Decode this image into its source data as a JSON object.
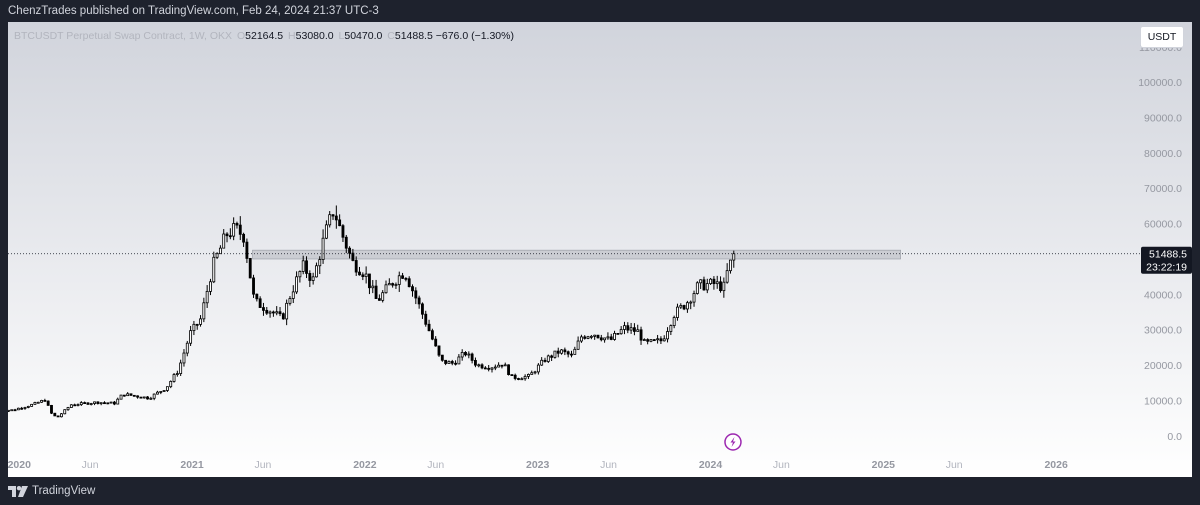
{
  "header": {
    "published": "ChenzTrades published on TradingView.com, Feb 24, 2024 21:37 UTC-3"
  },
  "legend": {
    "symbol": "BTCUSDT Perpetual Swap Contract, 1W, OKX",
    "o_label": "O",
    "open": "52164.5",
    "h_label": "H",
    "high": "53080.0",
    "l_label": "L",
    "low": "50470.0",
    "c_label": "C",
    "close": "51488.5",
    "change": "−676.0 (−1.30%)"
  },
  "currency_button": "USDT",
  "price_label": {
    "price": "51488.5",
    "countdown": "23:22:19"
  },
  "brand": {
    "name": "TradingView",
    "logo_icon": "tradingview-logo-icon"
  },
  "colors": {
    "up": "#ffffff",
    "down": "#000000",
    "wick": "#000000",
    "accent": "#9c27b0",
    "price_tag": "#131722"
  },
  "chart_data": {
    "type": "candlestick",
    "timeframe": "1W",
    "exchange": "OKX",
    "last_price": 51488.5,
    "y_ticks": [
      0,
      10000,
      20000,
      30000,
      40000,
      50000,
      60000,
      70000,
      80000,
      90000,
      100000,
      110000
    ],
    "y_tick_labels": [
      "0.0",
      "10000.0",
      "20000.0",
      "30000.0",
      "40000.0",
      "50000.0",
      "60000.0",
      "70000.0",
      "80000.0",
      "90000.0",
      "100000.0",
      "110000.0"
    ],
    "ylim": [
      -4000,
      117000
    ],
    "x_labels": [
      {
        "t": 2020.0,
        "label": "2020",
        "bold": true
      },
      {
        "t": 2020.41,
        "label": "Jun",
        "bold": false
      },
      {
        "t": 2021.0,
        "label": "2021",
        "bold": true
      },
      {
        "t": 2021.41,
        "label": "Jun",
        "bold": false
      },
      {
        "t": 2022.0,
        "label": "2022",
        "bold": true
      },
      {
        "t": 2022.41,
        "label": "Jun",
        "bold": false
      },
      {
        "t": 2023.0,
        "label": "2023",
        "bold": true
      },
      {
        "t": 2023.41,
        "label": "Jun",
        "bold": false
      },
      {
        "t": 2024.0,
        "label": "2024",
        "bold": true
      },
      {
        "t": 2024.41,
        "label": "Jun",
        "bold": false
      },
      {
        "t": 2025.0,
        "label": "2025",
        "bold": true
      },
      {
        "t": 2025.41,
        "label": "Jun",
        "bold": false
      },
      {
        "t": 2026.0,
        "label": "2026",
        "bold": true
      }
    ],
    "xlim": [
      2019.935,
      2026.3
    ],
    "resistance_zone": {
      "y_low": 50000,
      "y_high": 52500,
      "t_start": 2021.35,
      "t_end": 2025.1
    },
    "event_marker": {
      "t": 2024.13,
      "icon": "lightning-icon"
    },
    "series_keypoints": [
      [
        2019.88,
        7200
      ],
      [
        2019.96,
        7300
      ],
      [
        2020.08,
        8900
      ],
      [
        2020.15,
        10200
      ],
      [
        2020.19,
        6000
      ],
      [
        2020.22,
        5200
      ],
      [
        2020.3,
        8800
      ],
      [
        2020.45,
        9500
      ],
      [
        2020.55,
        9200
      ],
      [
        2020.6,
        11800
      ],
      [
        2020.75,
        10700
      ],
      [
        2020.85,
        13600
      ],
      [
        2020.92,
        18500
      ],
      [
        2020.99,
        29000
      ],
      [
        2021.05,
        33000
      ],
      [
        2021.12,
        48000
      ],
      [
        2021.2,
        57000
      ],
      [
        2021.25,
        58500
      ],
      [
        2021.3,
        56500
      ],
      [
        2021.36,
        38000
      ],
      [
        2021.45,
        35500
      ],
      [
        2021.52,
        33000
      ],
      [
        2021.57,
        40000
      ],
      [
        2021.64,
        48000
      ],
      [
        2021.7,
        44000
      ],
      [
        2021.77,
        57000
      ],
      [
        2021.82,
        64000
      ],
      [
        2021.86,
        58000
      ],
      [
        2021.93,
        49000
      ],
      [
        2022.0,
        46000
      ],
      [
        2022.07,
        38000
      ],
      [
        2022.15,
        43000
      ],
      [
        2022.23,
        46500
      ],
      [
        2022.3,
        38500
      ],
      [
        2022.37,
        30000
      ],
      [
        2022.44,
        21000
      ],
      [
        2022.51,
        20500
      ],
      [
        2022.58,
        23500
      ],
      [
        2022.65,
        20000
      ],
      [
        2022.73,
        19500
      ],
      [
        2022.8,
        20500
      ],
      [
        2022.85,
        16500
      ],
      [
        2022.95,
        16800
      ],
      [
        2023.04,
        21500
      ],
      [
        2023.13,
        24000
      ],
      [
        2023.2,
        22500
      ],
      [
        2023.25,
        28000
      ],
      [
        2023.32,
        29000
      ],
      [
        2023.42,
        27000
      ],
      [
        2023.5,
        30500
      ],
      [
        2023.58,
        29500
      ],
      [
        2023.62,
        26000
      ],
      [
        2023.72,
        27000
      ],
      [
        2023.79,
        34500
      ],
      [
        2023.86,
        37500
      ],
      [
        2023.93,
        42500
      ],
      [
        2024.02,
        43000
      ],
      [
        2024.08,
        42000
      ],
      [
        2024.1,
        47000
      ],
      [
        2024.14,
        51500
      ]
    ]
  }
}
